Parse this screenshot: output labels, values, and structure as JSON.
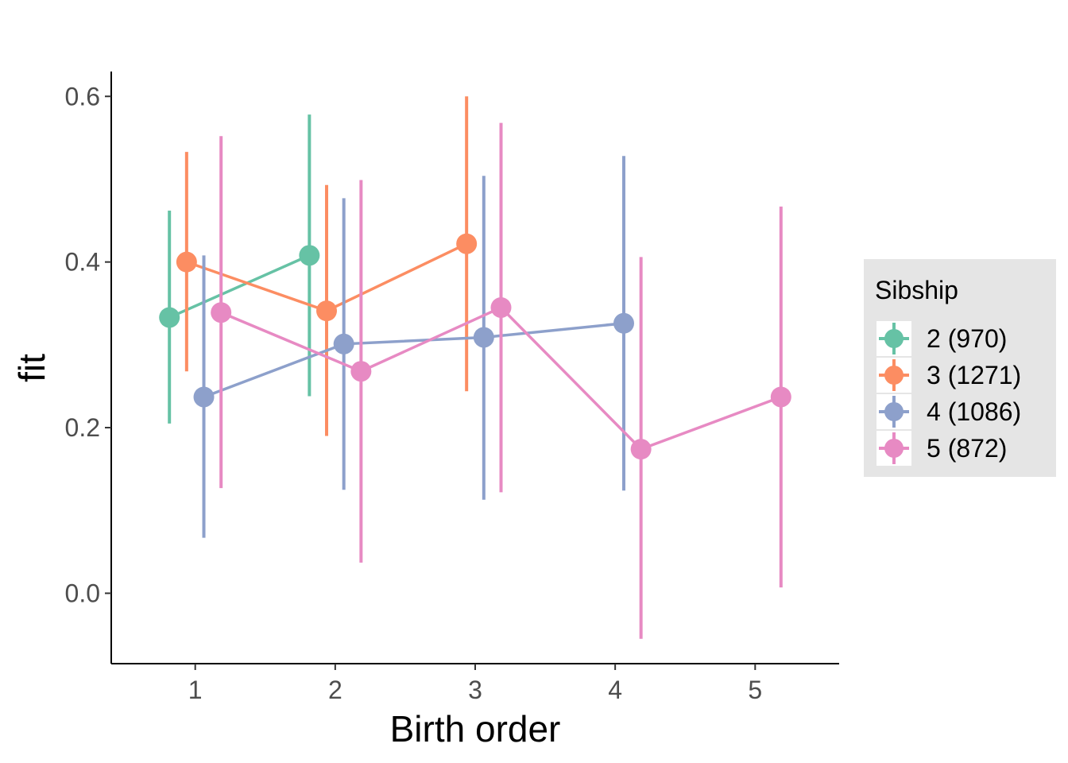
{
  "chart_data": {
    "type": "scatter",
    "xlabel": "Birth order",
    "ylabel": "fit",
    "xlim": [
      0.4,
      5.6
    ],
    "ylim": [
      -0.085,
      0.63
    ],
    "x_ticks": [
      1,
      2,
      3,
      4,
      5
    ],
    "y_ticks": [
      0.0,
      0.2,
      0.4,
      0.6
    ],
    "x_tick_labels": [
      "1",
      "2",
      "3",
      "4",
      "5"
    ],
    "y_tick_labels": [
      "0.0",
      "0.2",
      "0.4",
      "0.6"
    ],
    "grid": false,
    "legend": {
      "title": "Sibship",
      "placement": "right"
    },
    "series": [
      {
        "name": "2 (970)",
        "color": "#66c2a5",
        "points": [
          {
            "x": 1,
            "y": 0.333,
            "lower": 0.205,
            "upper": 0.462
          },
          {
            "x": 2,
            "y": 0.408,
            "lower": 0.238,
            "upper": 0.578
          }
        ]
      },
      {
        "name": "3 (1271)",
        "color": "#fc8d62",
        "points": [
          {
            "x": 1,
            "y": 0.4,
            "lower": 0.268,
            "upper": 0.533
          },
          {
            "x": 2,
            "y": 0.341,
            "lower": 0.19,
            "upper": 0.493
          },
          {
            "x": 3,
            "y": 0.422,
            "lower": 0.244,
            "upper": 0.6
          }
        ]
      },
      {
        "name": "4 (1086)",
        "color": "#8da0cb",
        "points": [
          {
            "x": 1,
            "y": 0.237,
            "lower": 0.067,
            "upper": 0.408
          },
          {
            "x": 2,
            "y": 0.301,
            "lower": 0.125,
            "upper": 0.477
          },
          {
            "x": 3,
            "y": 0.309,
            "lower": 0.113,
            "upper": 0.504
          },
          {
            "x": 4,
            "y": 0.326,
            "lower": 0.124,
            "upper": 0.528
          }
        ]
      },
      {
        "name": "5 (872)",
        "color": "#e78ac3",
        "points": [
          {
            "x": 1,
            "y": 0.339,
            "lower": 0.127,
            "upper": 0.552
          },
          {
            "x": 2,
            "y": 0.268,
            "lower": 0.037,
            "upper": 0.499
          },
          {
            "x": 3,
            "y": 0.345,
            "lower": 0.122,
            "upper": 0.568
          },
          {
            "x": 4,
            "y": 0.174,
            "lower": -0.055,
            "upper": 0.406
          },
          {
            "x": 5,
            "y": 0.237,
            "lower": 0.007,
            "upper": 0.467
          }
        ]
      }
    ]
  }
}
